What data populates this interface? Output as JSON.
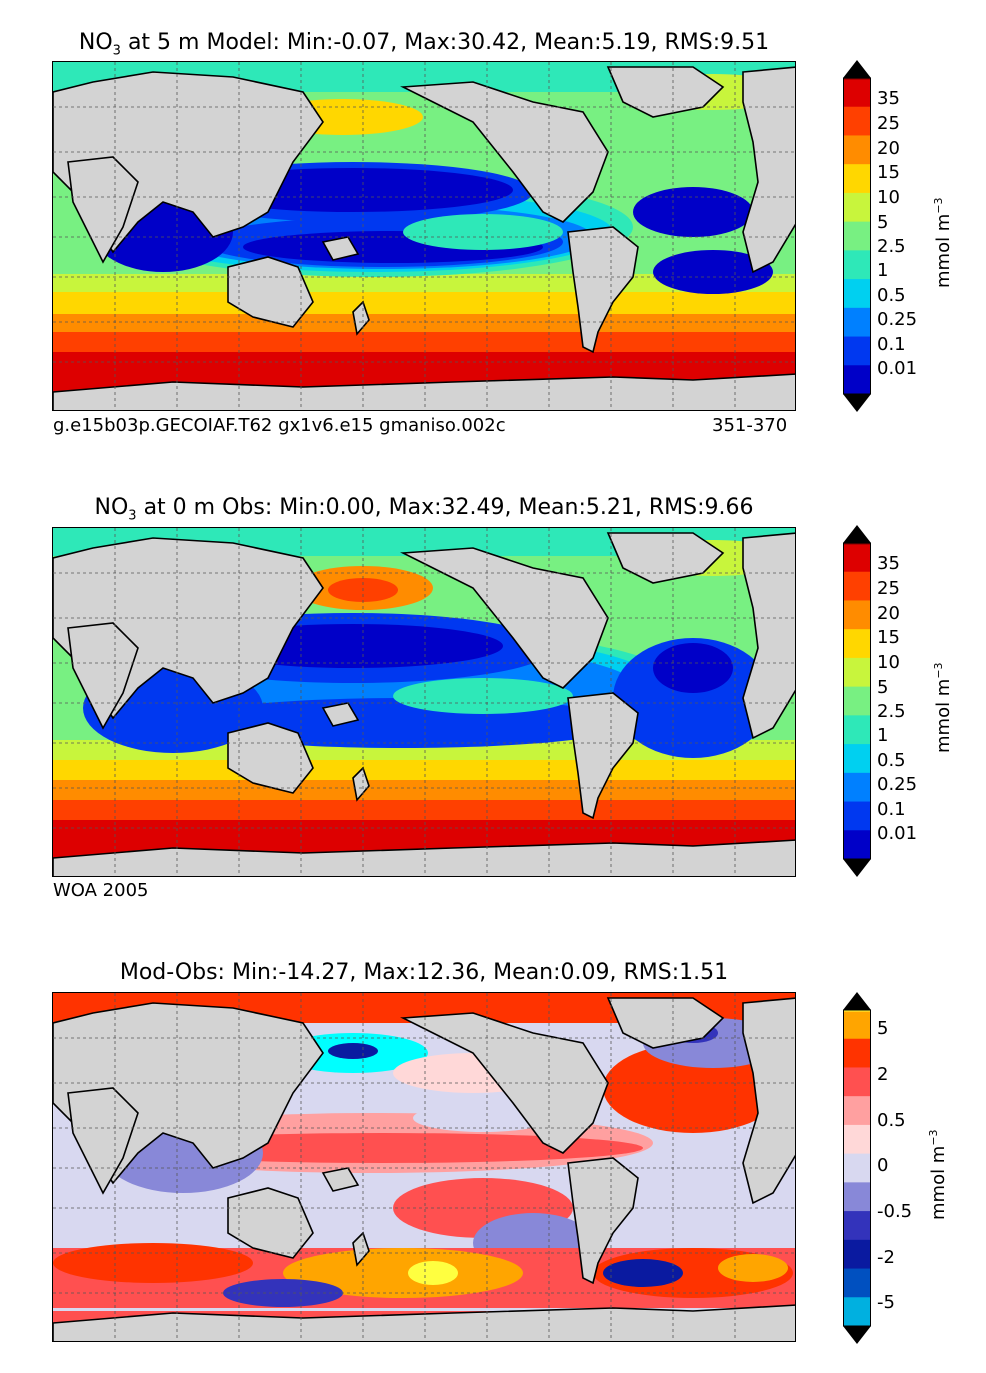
{
  "panels": [
    {
      "title_prefix": "NO",
      "title_sub": "3",
      "title_rest": " at 5 m Model: Min:-0.07, Max:30.42, Mean:5.19, RMS:9.51",
      "footer_left": "g.e15b03p.GECOIAF.T62 gx1v6.e15 gmaniso.002c",
      "footer_right": "351-370"
    },
    {
      "title_prefix": "NO",
      "title_sub": "3",
      "title_rest": " at 0 m Obs: Min:0.00, Max:32.49, Mean:5.21, RMS:9.66",
      "footer_left": "WOA 2005",
      "footer_right": ""
    },
    {
      "title_prefix": "",
      "title_sub": "",
      "title_rest": "Mod-Obs: Min:-14.27, Max:12.36, Mean:0.09, RMS:1.51",
      "footer_left": "",
      "footer_right": ""
    }
  ],
  "colorbar_nitrate": {
    "unit_main": "mmol m",
    "unit_exp": "−3",
    "labels": [
      "35",
      "25",
      "20",
      "15",
      "10",
      "5",
      "2.5",
      "1",
      "0.5",
      "0.25",
      "0.1",
      "0.01"
    ],
    "colors": [
      "#800000",
      "#dd0000",
      "#ff4000",
      "#ff8c00",
      "#ffd700",
      "#c8f53c",
      "#78f082",
      "#2ee8b8",
      "#00d0f0",
      "#0080ff",
      "#0038f0",
      "#0000c8",
      "#000080"
    ]
  },
  "colorbar_diff": {
    "unit_main": "mmol m",
    "unit_exp": "−3",
    "labels": [
      "5",
      "2",
      "0.5",
      "0",
      "-0.5",
      "-2",
      "-5"
    ],
    "colors": [
      "#ffff40",
      "#ffa500",
      "#ff3300",
      "#ff5050",
      "#ffa0a0",
      "#ffd8d8",
      "#d8d8f0",
      "#8888d8",
      "#3333bb",
      "#0a1aa0",
      "#0050c0",
      "#00b0e0",
      "#00ffff"
    ]
  },
  "map_colors": {
    "land": "#d3d3d3",
    "coast": "#000000",
    "grid": "#555555"
  }
}
